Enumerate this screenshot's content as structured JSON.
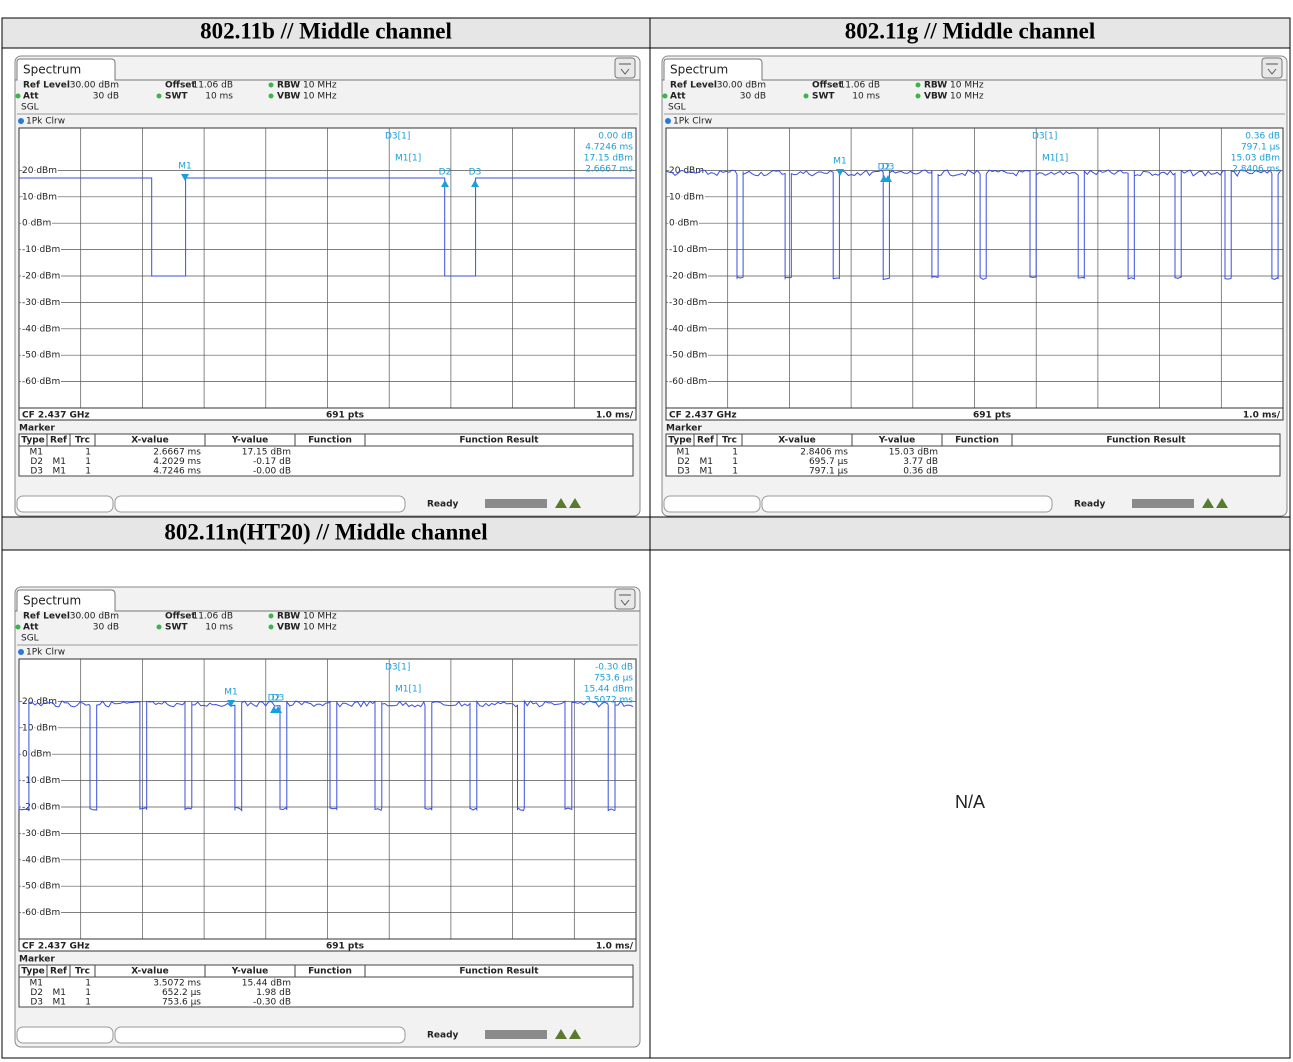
{
  "cells": [
    {
      "title": "802.11b // Middle channel",
      "screen": {
        "tab": "Spectrum",
        "settings": [
          [
            "Ref Level",
            "30.00 dBm",
            "Offset",
            "11.06 dB",
            "RBW",
            "10 MHz"
          ],
          [
            "Att",
            "30 dB",
            "SWT",
            "10 ms",
            "VBW",
            "10 MHz"
          ]
        ],
        "mode": "SGL",
        "trace": "1Pk Clrw",
        "y_labels": [
          "20 dBm",
          "10 dBm",
          "0 dBm",
          "-10 dBm",
          "-20 dBm",
          "-30 dBm",
          "-40 dBm",
          "-50 dBm",
          "-60 dBm"
        ],
        "marker_info": {
          "d_label": "D3[1]",
          "d_value": "0.00 dB",
          "d_x": "4.7246 ms",
          "m_label": "M1[1]",
          "m_value": "17.15 dBm",
          "m_x": "2.6667 ms"
        },
        "marker_tags": [
          "M1",
          "D2",
          "D3"
        ],
        "footer": [
          "CF 2.437 GHz",
          "691 pts",
          "1.0 ms/"
        ],
        "marker_title": "Marker",
        "marker_columns": [
          "Type",
          "Ref",
          "Trc",
          "X-value",
          "Y-value",
          "Function",
          "Function Result"
        ],
        "marker_rows": [
          {
            "type": "M1",
            "trc": "1",
            "x": "2.6667 ms",
            "y": "17.15 dBm"
          },
          {
            "type": "D2",
            "ref": "M1",
            "trc": "1",
            "x": "4.2029 ms",
            "y": "-0.17 dB"
          },
          {
            "type": "D3",
            "ref": "M1",
            "trc": "1",
            "x": "4.7246 ms",
            "y": "-0.00 dB"
          }
        ],
        "status": "Ready"
      }
    },
    {
      "title": "802.11g // Middle channel",
      "screen": {
        "tab": "Spectrum",
        "settings": [
          [
            "Ref Level",
            "30.00 dBm",
            "Offset",
            "11.06 dB",
            "RBW",
            "10 MHz"
          ],
          [
            "Att",
            "30 dB",
            "SWT",
            "10 ms",
            "VBW",
            "10 MHz"
          ]
        ],
        "mode": "SGL",
        "trace": "1Pk Clrw",
        "y_labels": [
          "20 dBm",
          "10 dBm",
          "0 dBm",
          "-10 dBm",
          "-20 dBm",
          "-30 dBm",
          "-40 dBm",
          "-50 dBm",
          "-60 dBm"
        ],
        "marker_info": {
          "d_label": "D3[1]",
          "d_value": "0.36 dB",
          "d_x": "797.1 µs",
          "m_label": "M1[1]",
          "m_value": "15.03 dBm",
          "m_x": "2.8406 ms"
        },
        "marker_tags": [
          "M1",
          "D2",
          "D3"
        ],
        "footer": [
          "CF 2.437 GHz",
          "691 pts",
          "1.0 ms/"
        ],
        "marker_title": "Marker",
        "marker_columns": [
          "Type",
          "Ref",
          "Trc",
          "X-value",
          "Y-value",
          "Function",
          "Function Result"
        ],
        "marker_rows": [
          {
            "type": "M1",
            "trc": "1",
            "x": "2.8406 ms",
            "y": "15.03 dBm"
          },
          {
            "type": "D2",
            "ref": "M1",
            "trc": "1",
            "x": "695.7 µs",
            "y": "3.77 dB"
          },
          {
            "type": "D3",
            "ref": "M1",
            "trc": "1",
            "x": "797.1 µs",
            "y": "0.36 dB"
          }
        ],
        "status": "Ready"
      }
    },
    {
      "title": "802.11n(HT20) // Middle channel",
      "screen": {
        "tab": "Spectrum",
        "settings": [
          [
            "Ref Level",
            "30.00 dBm",
            "Offset",
            "11.06 dB",
            "RBW",
            "10 MHz"
          ],
          [
            "Att",
            "30 dB",
            "SWT",
            "10 ms",
            "VBW",
            "10 MHz"
          ]
        ],
        "mode": "SGL",
        "trace": "1Pk Clrw",
        "y_labels": [
          "20 dBm",
          "10 dBm",
          "0 dBm",
          "-10 dBm",
          "-20 dBm",
          "-30 dBm",
          "-40 dBm",
          "-50 dBm",
          "-60 dBm"
        ],
        "marker_info": {
          "d_label": "D3[1]",
          "d_value": "-0.30 dB",
          "d_x": "753.6 µs",
          "m_label": "M1[1]",
          "m_value": "15.44 dBm",
          "m_x": "3.5072 ms"
        },
        "marker_tags": [
          "M1",
          "D2",
          "D3"
        ],
        "footer": [
          "CF 2.437 GHz",
          "691 pts",
          "1.0 ms/"
        ],
        "marker_title": "Marker",
        "marker_columns": [
          "Type",
          "Ref",
          "Trc",
          "X-value",
          "Y-value",
          "Function",
          "Function Result"
        ],
        "marker_rows": [
          {
            "type": "M1",
            "trc": "1",
            "x": "3.5072 ms",
            "y": "15.44 dBm"
          },
          {
            "type": "D2",
            "ref": "M1",
            "trc": "1",
            "x": "652.2 µs",
            "y": "1.98 dB"
          },
          {
            "type": "D3",
            "ref": "M1",
            "trc": "1",
            "x": "753.6 µs",
            "y": "-0.30 dB"
          }
        ],
        "status": "Ready"
      }
    },
    {
      "text": "N/A"
    }
  ]
}
